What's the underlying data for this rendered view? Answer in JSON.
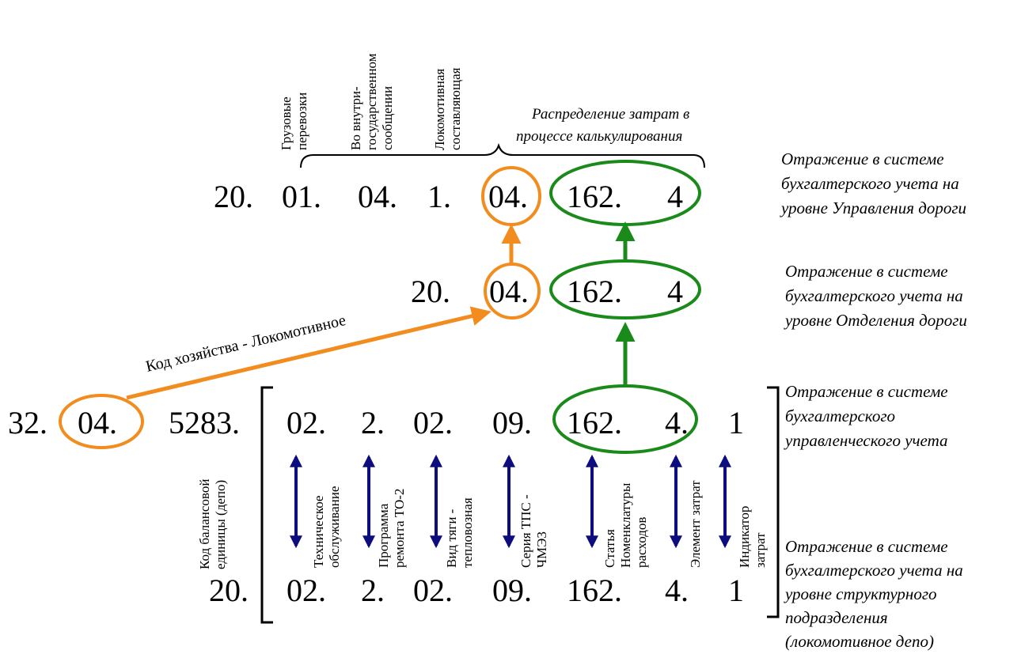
{
  "top_labels": [
    [
      "Грузовые",
      "перевозки"
    ],
    [
      "Во внутри-",
      "государственном",
      "сообщении"
    ],
    [
      "Локомотивная",
      "составляющая"
    ]
  ],
  "distribution_label": [
    "Распределение затрат в",
    "процессе калькулирования"
  ],
  "row1": [
    "20.",
    "01.",
    "04.",
    "1.",
    "04.",
    "162.",
    "4"
  ],
  "row2": [
    "20.",
    "04.",
    "162.",
    "4"
  ],
  "row3": [
    "32.",
    "04.",
    "5283.",
    "02.",
    "2.",
    "02.",
    "09.",
    "162.",
    "4.",
    "1"
  ],
  "row4": [
    "20.",
    "02.",
    "2.",
    "02.",
    "09.",
    "162.",
    "4.",
    "1"
  ],
  "arrow_label": "Код хозяйства - Локомотивное",
  "bottom_labels": [
    [
      "Код балансовой",
      "единицы (депо)"
    ],
    [
      "Техническое",
      "обслуживание"
    ],
    [
      "Программа",
      "ремонта ТО-2"
    ],
    [
      "Вид тяги -",
      "тепловозная"
    ],
    [
      "Серия ТПС -",
      "ЧМЭ3"
    ],
    [
      "Статья",
      "Номенклатуры",
      "расходов"
    ],
    [
      "Элемент затрат"
    ],
    [
      "Индикатор",
      "затрат"
    ]
  ],
  "notes": {
    "road_management": [
      "Отражение в системе",
      "бухгалтерского учета на",
      "уровне Управления дороги"
    ],
    "road_department": [
      "Отражение в системе",
      "бухгалтерского учета на",
      "уровне Отделения дороги"
    ],
    "management_accounting": [
      "Отражение в системе",
      "бухгалтерского",
      "управленческого учета"
    ],
    "structural_unit": [
      "Отражение в системе",
      "бухгалтерского учета на",
      "уровне структурного",
      "подразделения",
      "(локомотивное депо)"
    ]
  },
  "colors": {
    "orange": "#f28c1e",
    "green": "#1a8a1a",
    "navy": "#0d0d80",
    "text": "#000000"
  }
}
